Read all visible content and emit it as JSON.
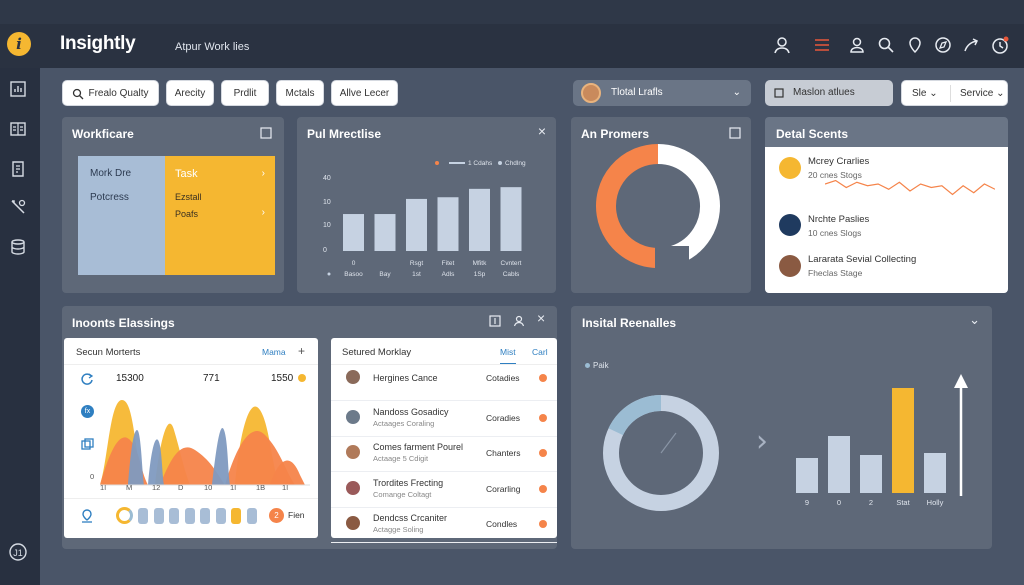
{
  "app": {
    "title": "Insightly",
    "subtitle": "Atpur Work lies"
  },
  "filters": [
    "Frealo Qualty",
    "Arecity",
    "Prdlit",
    "Mctals",
    "Allve Lecer"
  ],
  "dropdowns": {
    "profile_label": "Tlotal Lrafls",
    "maison_label": "Maslon atlues",
    "sle_label": "Sle",
    "service_label": "Service"
  },
  "workficare": {
    "title": "Workficare",
    "left": [
      "Mork Dre",
      "Potcress"
    ],
    "right": [
      "Task",
      "Ezstall",
      "Poafs"
    ]
  },
  "pul_chart": {
    "title": "Pul Mrectlise",
    "legend": [
      "",
      "1 Cdahs",
      "Chdlng"
    ]
  },
  "chart_data": [
    {
      "type": "bar",
      "title": "Pul Mrectlise",
      "categories": [
        "Basoo",
        "Bay",
        "1st",
        "Adls",
        "1Sp",
        "Cabls"
      ],
      "category_top": [
        "0",
        "",
        "Rsgt",
        "Fitet",
        "Mfitk",
        "Cvntert"
      ],
      "values": [
        22,
        22,
        31,
        32,
        37,
        38
      ],
      "ytick_labels": [
        "40",
        "10",
        "10",
        "0"
      ],
      "ylim": [
        0,
        50
      ],
      "legend": [
        "1 Cdahs",
        "Chdlng"
      ]
    },
    {
      "type": "pie",
      "title": "An Promers",
      "values": [
        45,
        55
      ],
      "colors": [
        "#f5844a",
        "#ffffff"
      ]
    },
    {
      "type": "line",
      "title": "Detal Scents",
      "values": [
        12,
        14,
        10,
        13,
        11,
        12,
        9,
        13,
        8,
        12,
        10,
        11,
        6,
        11,
        7,
        12,
        9
      ]
    },
    {
      "type": "area",
      "title": "Secun Morterts",
      "xticks": [
        "1I",
        "M",
        "12",
        "D",
        "10",
        "1I",
        "1B",
        "1I"
      ],
      "ytick_labels": [
        "0"
      ]
    },
    {
      "type": "bar",
      "title": "Insital Reenalles",
      "categories": [
        "9",
        "0",
        "2",
        "Stat",
        "Holly"
      ],
      "values": [
        35,
        57,
        38,
        105,
        40
      ],
      "colors": [
        "#c6d2e2",
        "#c6d2e2",
        "#c6d2e2",
        "#f5b731",
        "#c6d2e2"
      ],
      "ylim": [
        0,
        120
      ]
    },
    {
      "type": "pie",
      "title": "Insital Reenalles",
      "legend": [
        "Paik"
      ],
      "values": [
        18,
        82
      ],
      "colors": [
        "#9bbcd3",
        "#c6d2e2"
      ]
    }
  ],
  "promers": {
    "title": "An Promers"
  },
  "scents": {
    "title": "Detal Scents",
    "items": [
      {
        "name": "Mcrey Crarlies",
        "sub": "20 cnes Stogs"
      },
      {
        "name": "Nrchte Paslies",
        "sub": "10 cnes Slogs"
      },
      {
        "name": "Lararata Sevial Collecting",
        "sub": "Fheclas Stage"
      }
    ]
  },
  "inonts": {
    "title": "Inoonts Elassings"
  },
  "secun": {
    "title": "Secun Morterts",
    "link": "Mama",
    "stats": [
      "15300",
      "771",
      "1550"
    ],
    "footer_label": "Fien"
  },
  "setured": {
    "title": "Setured Morklay",
    "tab1": "Mist",
    "tab2": "Carl",
    "rows": [
      {
        "name": "Hergines Cance",
        "sub": "",
        "status": "Cotadies"
      },
      {
        "name": "Nandoss Gosadicy",
        "sub": "Actaages Coraling",
        "status": "Coradies"
      },
      {
        "name": "Comes farment Pourel",
        "sub": "Actaage 5 Cdigit",
        "status": "Chanters"
      },
      {
        "name": "Trordites Frecting",
        "sub": "Comange Coltagt",
        "status": "Corarling"
      },
      {
        "name": "Dendcss Crcaniter",
        "sub": "Actagge Soling",
        "status": "Condles"
      }
    ]
  },
  "insital": {
    "title": "Insital Reenalles",
    "legend": "Paik"
  },
  "colors": {
    "accent": "#f5b731",
    "orange": "#f5844a",
    "blue": "#2f7fc1",
    "bar": "#c6d2e2",
    "bg": "#4a5568",
    "card": "#5e6878"
  }
}
